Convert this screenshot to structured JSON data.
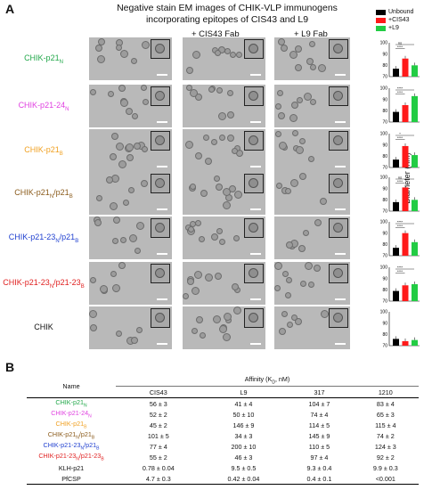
{
  "panel_a_label": "A",
  "panel_b_label": "B",
  "em_title": [
    "Negative stain EM images of CHIK-VLP immunogens",
    "incorporating epitopes of CIS43 and L9"
  ],
  "column_headers": [
    "+ CIS43 Fab",
    "+ L9 Fab"
  ],
  "rows": [
    {
      "label": "CHIK-p21",
      "sub": "N",
      "color": "#22a84a"
    },
    {
      "label": "CHIK-p21-24",
      "sub": "N",
      "color": "#e040e0"
    },
    {
      "label": "CHIK-p21",
      "sub": "B",
      "color": "#f0a020"
    },
    {
      "label": "CHIK-p21",
      "sub": "N",
      "label2": "/p21",
      "sub2": "B",
      "color": "#8a5a1a"
    },
    {
      "label": "CHIK-p21-23",
      "sub": "N",
      "label2": "/p21",
      "sub2": "B",
      "color": "#2040d0"
    },
    {
      "label": "CHIK-p21-23",
      "sub": "N",
      "label2": "/p21-23",
      "sub2": "B",
      "color": "#e02020"
    },
    {
      "label": "CHIK",
      "sub": "",
      "color": "#111111"
    }
  ],
  "legend": [
    {
      "label": "Unbound",
      "color": "#000000"
    },
    {
      "label": "+CIS43",
      "color": "#ff1a1a"
    },
    {
      "label": "+L9",
      "color": "#22cc44"
    }
  ],
  "y_axis_label": "Diameter (nm)",
  "chart_data": [
    {
      "type": "bar",
      "categories": [
        "Unbound",
        "+CIS43",
        "+L9"
      ],
      "values": [
        77,
        86,
        80
      ],
      "ylim": [
        70,
        100
      ],
      "yticks": [
        70,
        80,
        90,
        100
      ],
      "annotations": [
        "ns",
        "****"
      ]
    },
    {
      "type": "bar",
      "categories": [
        "Unbound",
        "+CIS43",
        "+L9"
      ],
      "values": [
        79,
        85,
        93
      ],
      "ylim": [
        70,
        100
      ],
      "yticks": [
        70,
        80,
        90,
        100
      ],
      "annotations": [
        "****",
        "****"
      ]
    },
    {
      "type": "bar",
      "categories": [
        "Unbound",
        "+CIS43",
        "+L9"
      ],
      "values": [
        77,
        89,
        81
      ],
      "ylim": [
        70,
        100
      ],
      "yticks": [
        70,
        80,
        90,
        100
      ],
      "annotations": [
        "*",
        "****"
      ]
    },
    {
      "type": "bar",
      "categories": [
        "Unbound",
        "+CIS43",
        "+L9"
      ],
      "values": [
        78,
        91,
        80
      ],
      "ylim": [
        70,
        100
      ],
      "yticks": [
        70,
        80,
        90,
        100
      ],
      "annotations": [
        "ns",
        "****"
      ]
    },
    {
      "type": "bar",
      "categories": [
        "Unbound",
        "+CIS43",
        "+L9"
      ],
      "values": [
        77,
        90,
        82
      ],
      "ylim": [
        70,
        100
      ],
      "yticks": [
        70,
        80,
        90,
        100
      ],
      "annotations": [
        "****",
        "****"
      ]
    },
    {
      "type": "bar",
      "categories": [
        "Unbound",
        "+CIS43",
        "+L9"
      ],
      "values": [
        79,
        84,
        85
      ],
      "ylim": [
        70,
        100
      ],
      "yticks": [
        70,
        80,
        90,
        100
      ],
      "annotations": [
        "****",
        "****"
      ]
    },
    {
      "type": "bar",
      "categories": [
        "Unbound",
        "+CIS43",
        "+L9"
      ],
      "values": [
        76,
        74,
        75
      ],
      "ylim": [
        70,
        100
      ],
      "yticks": [
        70,
        80,
        90,
        100
      ],
      "annotations": []
    }
  ],
  "table": {
    "name_header": "Name",
    "affinity_header": "Affinity (K",
    "affinity_sub": "D",
    "affinity_unit": ", nM)",
    "columns": [
      "CIS43",
      "L9",
      "317",
      "1210"
    ],
    "rows": [
      {
        "name": "CHIK-p21",
        "sub": "N",
        "color": "#22a84a",
        "values": [
          "56 ± 3",
          "41 ± 4",
          "104 ± 7",
          "83 ± 4"
        ]
      },
      {
        "name": "CHIK-p21-24",
        "sub": "N",
        "color": "#e040e0",
        "values": [
          "52 ± 2",
          "50 ± 10",
          "74 ± 4",
          "65 ± 3"
        ]
      },
      {
        "name": "CHIK-p21",
        "sub": "B",
        "color": "#f0a020",
        "values": [
          "45 ± 2",
          "146 ± 9",
          "114 ± 5",
          "115 ± 4"
        ]
      },
      {
        "name": "CHIK-p21",
        "sub": "N",
        "name2": "/p21",
        "sub2": "B",
        "color": "#8a5a1a",
        "values": [
          "101 ± 5",
          "34 ± 3",
          "145 ± 9",
          "74 ± 2"
        ]
      },
      {
        "name": "CHIK-p21-23",
        "sub": "N",
        "name2": "/p21",
        "sub2": "B",
        "color": "#2040d0",
        "values": [
          "77 ± 4",
          "200 ± 10",
          "110 ± 5",
          "124 ± 3"
        ]
      },
      {
        "name": "CHIK-p21-23",
        "sub": "N",
        "name2": "/p21-23",
        "sub2": "B",
        "color": "#e02020",
        "values": [
          "55 ± 2",
          "46 ± 3",
          "97 ± 4",
          "92 ± 2"
        ]
      },
      {
        "name": "KLH-p21",
        "sub": "",
        "color": "#111111",
        "values": [
          "0.78 ± 0.04",
          "9.5 ± 0.5",
          "9.3 ± 0.4",
          "9.9 ± 0.3"
        ]
      },
      {
        "name": "PfCSP",
        "sub": "",
        "color": "#111111",
        "values": [
          "4.7 ± 0.3",
          "0.42 ± 0.04",
          "0.4 ± 0.1",
          "<0.001"
        ]
      }
    ]
  }
}
